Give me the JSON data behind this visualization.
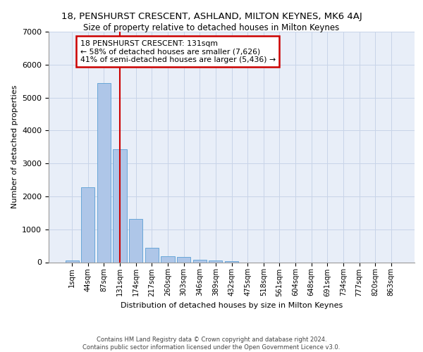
{
  "title": "18, PENSHURST CRESCENT, ASHLAND, MILTON KEYNES, MK6 4AJ",
  "subtitle": "Size of property relative to detached houses in Milton Keynes",
  "xlabel": "Distribution of detached houses by size in Milton Keynes",
  "ylabel": "Number of detached properties",
  "bin_labels": [
    "1sqm",
    "44sqm",
    "87sqm",
    "131sqm",
    "174sqm",
    "217sqm",
    "260sqm",
    "303sqm",
    "346sqm",
    "389sqm",
    "432sqm",
    "475sqm",
    "518sqm",
    "561sqm",
    "604sqm",
    "648sqm",
    "691sqm",
    "734sqm",
    "777sqm",
    "820sqm",
    "863sqm"
  ],
  "bar_values": [
    60,
    2280,
    5450,
    3430,
    1320,
    430,
    185,
    150,
    75,
    50,
    30,
    0,
    0,
    0,
    0,
    0,
    0,
    0,
    0,
    0,
    0
  ],
  "bar_color": "#aec6e8",
  "bar_edge_color": "#5a9fd4",
  "marker_index": 3,
  "annotation_line1": "18 PENSHURST CRESCENT: 131sqm",
  "annotation_line2": "← 58% of detached houses are smaller (7,626)",
  "annotation_line3": "41% of semi-detached houses are larger (5,436) →",
  "annotation_box_color": "#ffffff",
  "annotation_box_edge": "#cc0000",
  "marker_line_color": "#cc0000",
  "grid_color": "#c8d4e8",
  "bg_color": "#e8eef8",
  "ylim": [
    0,
    7000
  ],
  "yticks": [
    0,
    1000,
    2000,
    3000,
    4000,
    5000,
    6000,
    7000
  ],
  "footer_line1": "Contains HM Land Registry data © Crown copyright and database right 2024.",
  "footer_line2": "Contains public sector information licensed under the Open Government Licence v3.0."
}
